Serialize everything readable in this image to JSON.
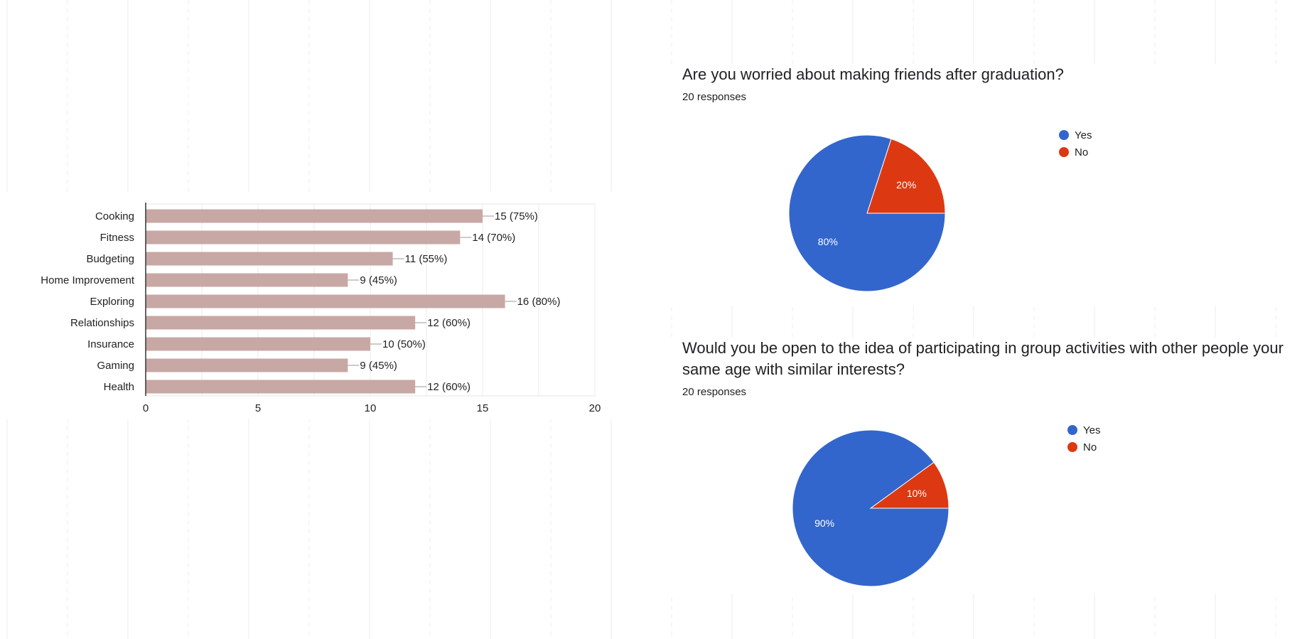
{
  "colors": {
    "bar": "#c8a8a4",
    "yes": "#3366cc",
    "no": "#dc3912",
    "text": "#202124"
  },
  "chart_data": [
    {
      "type": "bar",
      "orientation": "horizontal",
      "categories": [
        "Cooking",
        "Fitness",
        "Budgeting",
        "Home Improvement",
        "Exploring",
        "Relationships",
        "Insurance",
        "Gaming",
        "Health"
      ],
      "values": [
        15,
        14,
        11,
        9,
        16,
        12,
        10,
        9,
        12
      ],
      "data_labels": [
        "15 (75%)",
        "14 (70%)",
        "11 (55%)",
        "9 (45%)",
        "16 (80%)",
        "12 (60%)",
        "10 (50%)",
        "9 (45%)",
        "12 (60%)"
      ],
      "xlim": [
        0,
        20
      ],
      "xticks": [
        "0",
        "5",
        "10",
        "15",
        "20"
      ],
      "grid": true
    },
    {
      "type": "pie",
      "title": "Are you worried about making friends after graduation?",
      "subtitle": "20 responses",
      "labels": [
        "Yes",
        "No"
      ],
      "values": [
        80,
        20
      ],
      "slice_labels": [
        "80%",
        "20%"
      ],
      "legend": "right"
    },
    {
      "type": "pie",
      "title": "Would you be open to the idea of participating in group activities with other people your same age with similar interests?",
      "subtitle": "20 responses",
      "labels": [
        "Yes",
        "No"
      ],
      "values": [
        90,
        10
      ],
      "slice_labels": [
        "90%",
        "10%"
      ],
      "legend": "right"
    }
  ]
}
